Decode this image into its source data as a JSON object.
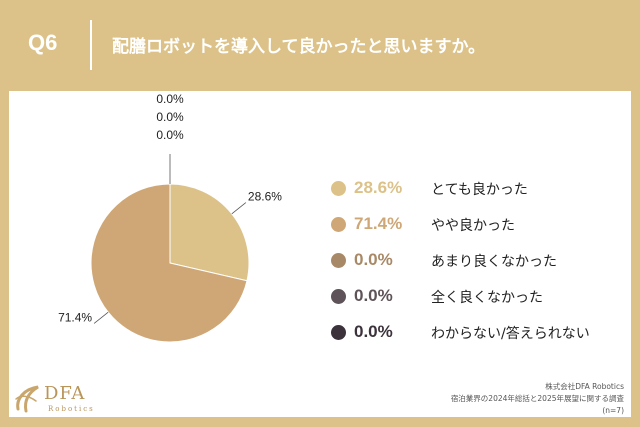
{
  "header": {
    "question_number": "Q6",
    "title": "配膳ロボットを導入して良かったと思いますか。"
  },
  "chart_data": {
    "type": "pie",
    "categories": [
      "とても良かった",
      "やや良かった",
      "あまり良くなかった",
      "全く良くなかった",
      "わからない/答えられない"
    ],
    "values": [
      28.6,
      71.4,
      0.0,
      0.0,
      0.0
    ],
    "value_labels": [
      "28.6%",
      "71.4%",
      "0.0%",
      "0.0%",
      "0.0%"
    ],
    "colors": [
      "#dcc289",
      "#cfa776",
      "#a88967",
      "#5e5358",
      "#3c323c"
    ],
    "legend_position": "right"
  },
  "logo": {
    "name": "DFA",
    "sub": "Robotics"
  },
  "source": {
    "company": "株式会社DFA Robotics",
    "survey": "宿泊業界の2024年総括と2025年展望に関する調査",
    "sample": "(n=7)"
  }
}
